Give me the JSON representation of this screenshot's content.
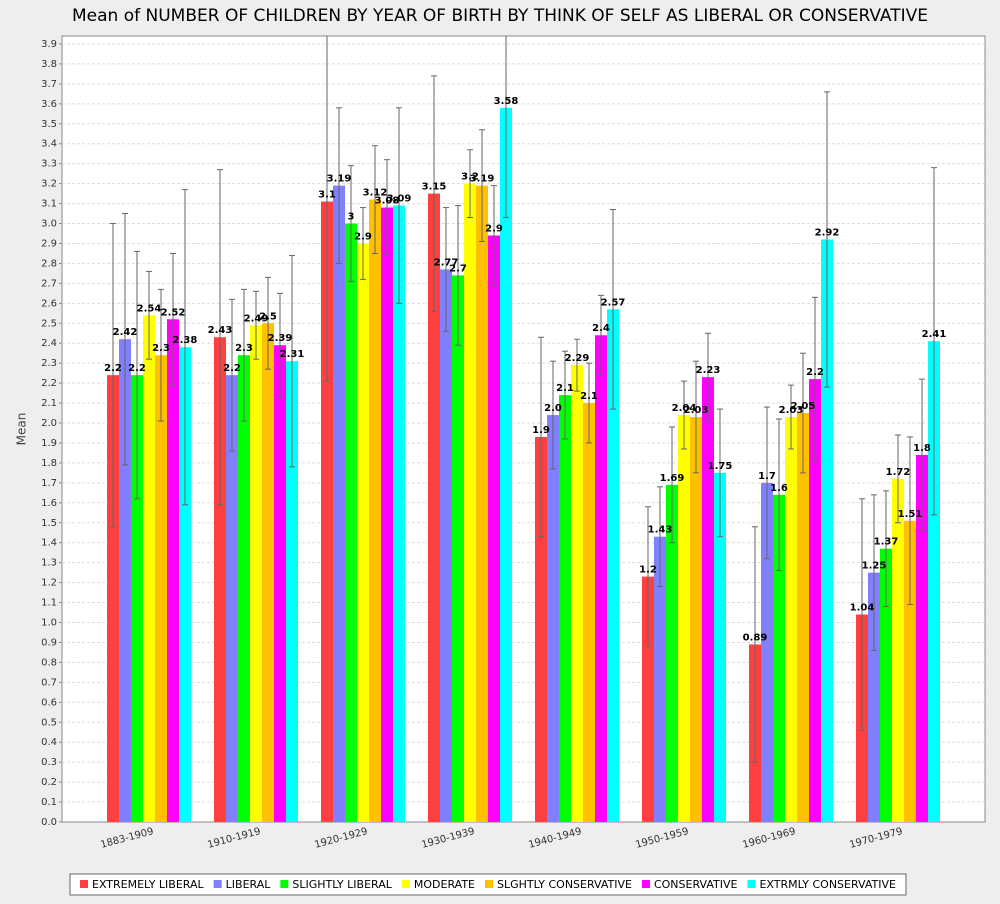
{
  "chart_data": {
    "type": "bar",
    "title": "Mean of NUMBER OF CHILDREN BY YEAR OF BIRTH BY THINK OF SELF AS LIBERAL OR CONSERVATIVE",
    "y_label": "Mean",
    "categories": [
      "1883-1909",
      "1910-1919",
      "1920-1929",
      "1930-1939",
      "1940-1949",
      "1950-1959",
      "1960-1969",
      "1970-1979"
    ],
    "series": [
      {
        "name": "EXTREMELY LIBERAL",
        "color": "#ff4040",
        "values": [
          2.24,
          2.43,
          3.11,
          3.15,
          1.93,
          1.23,
          0.89,
          1.04
        ],
        "value_labels": [
          "2.2",
          "2.43",
          "3.1",
          "3.15",
          "1.9",
          "1.2",
          "0.89",
          "1.04"
        ],
        "errors": [
          0.76,
          0.84,
          0.9,
          0.59,
          0.5,
          0.35,
          0.59,
          0.58
        ]
      },
      {
        "name": "LIBERAL",
        "color": "#8080ff",
        "values": [
          2.42,
          2.24,
          3.19,
          2.77,
          2.04,
          1.43,
          1.7,
          1.25
        ],
        "value_labels": [
          "2.42",
          "2.2",
          "3.19",
          "2.77",
          "2.0",
          "1.43",
          "1.7",
          "1.25"
        ],
        "errors": [
          0.63,
          0.38,
          0.39,
          0.31,
          0.27,
          0.25,
          0.38,
          0.39
        ]
      },
      {
        "name": "SLIGHTLY LIBERAL",
        "color": "#00ff00",
        "values": [
          2.24,
          2.34,
          3.0,
          2.74,
          2.14,
          1.69,
          1.64,
          1.37
        ],
        "value_labels": [
          "2.2",
          "2.3",
          "3",
          "2.7",
          "2.1",
          "1.69",
          "1.6",
          "1.37"
        ],
        "errors": [
          0.62,
          0.33,
          0.29,
          0.35,
          0.22,
          0.29,
          0.38,
          0.29
        ]
      },
      {
        "name": "MODERATE",
        "color": "#ffff00",
        "values": [
          2.54,
          2.49,
          2.9,
          3.2,
          2.29,
          2.04,
          2.03,
          1.72
        ],
        "value_labels": [
          "2.54",
          "2.49",
          "2.9",
          "3.2",
          "2.29",
          "2.04",
          "2.03",
          "1.72"
        ],
        "errors": [
          0.22,
          0.17,
          0.18,
          0.17,
          0.13,
          0.17,
          0.16,
          0.22
        ]
      },
      {
        "name": "SLGHTLY CONSERVATIVE",
        "color": "#ffc000",
        "values": [
          2.34,
          2.5,
          3.12,
          3.19,
          2.1,
          2.03,
          2.05,
          1.51
        ],
        "value_labels": [
          "2.3",
          "2.5",
          "3.12",
          "3.19",
          "2.1",
          "2.03",
          "2.05",
          "1.51"
        ],
        "errors": [
          0.33,
          0.23,
          0.27,
          0.28,
          0.2,
          0.28,
          0.3,
          0.42
        ]
      },
      {
        "name": "CONSERVATIVE",
        "color": "#ff00ff",
        "values": [
          2.52,
          2.39,
          3.08,
          2.94,
          2.44,
          2.23,
          2.22,
          1.84
        ],
        "value_labels": [
          "2.52",
          "2.39",
          "3.08",
          "2.9",
          "2.4",
          "2.23",
          "2.2",
          "1.8"
        ],
        "errors": [
          0.33,
          0.26,
          0.24,
          0.25,
          0.2,
          0.22,
          0.41,
          0.38
        ]
      },
      {
        "name": "EXTRMLY CONSERVATIVE",
        "color": "#00ffff",
        "values": [
          2.38,
          2.31,
          3.09,
          3.58,
          2.57,
          1.75,
          2.92,
          2.41
        ],
        "value_labels": [
          "2.38",
          "2.31",
          "3.09",
          "3.58",
          "2.57",
          "1.75",
          "2.92",
          "2.41"
        ],
        "errors": [
          0.79,
          0.53,
          0.49,
          0.55,
          0.5,
          0.32,
          0.74,
          0.87
        ]
      }
    ],
    "ylim": [
      0,
      3.94
    ],
    "yticks": [
      {
        "value": 0,
        "label": "0.0"
      },
      {
        "value": 0.1,
        "label": "0.1"
      },
      {
        "value": 0.2,
        "label": "0.2"
      },
      {
        "value": 0.3,
        "label": "0.3"
      },
      {
        "value": 0.4,
        "label": "0.4"
      },
      {
        "value": 0.5,
        "label": "0.5"
      },
      {
        "value": 0.6,
        "label": "0.6"
      },
      {
        "value": 0.7,
        "label": "0.7"
      },
      {
        "value": 0.8,
        "label": "0.8"
      },
      {
        "value": 0.9,
        "label": "0.9"
      },
      {
        "value": 1,
        "label": "1.0"
      },
      {
        "value": 1.1,
        "label": "1.1"
      },
      {
        "value": 1.2,
        "label": "1.2"
      },
      {
        "value": 1.3,
        "label": "1.3"
      },
      {
        "value": 1.4,
        "label": "1.4"
      },
      {
        "value": 1.5,
        "label": "1.5"
      },
      {
        "value": 1.6,
        "label": "1.6"
      },
      {
        "value": 1.7,
        "label": "1.7"
      },
      {
        "value": 1.8,
        "label": "1.8"
      },
      {
        "value": 1.9,
        "label": "1.9"
      },
      {
        "value": 2,
        "label": "2.0"
      },
      {
        "value": 2.1,
        "label": "2.1"
      },
      {
        "value": 2.2,
        "label": "2.2"
      },
      {
        "value": 2.3,
        "label": "2.3"
      },
      {
        "value": 2.4,
        "label": "2.4"
      },
      {
        "value": 2.5,
        "label": "2.5"
      },
      {
        "value": 2.6,
        "label": "2.6"
      },
      {
        "value": 2.7,
        "label": "2.7"
      },
      {
        "value": 2.8,
        "label": "2.8"
      },
      {
        "value": 2.9,
        "label": "2.9"
      },
      {
        "value": 3,
        "label": "3.0"
      },
      {
        "value": 3.1,
        "label": "3.1"
      },
      {
        "value": 3.2,
        "label": "3.2"
      },
      {
        "value": 3.3,
        "label": "3.3"
      },
      {
        "value": 3.4,
        "label": "3.4"
      },
      {
        "value": 3.5,
        "label": "3.5"
      },
      {
        "value": 3.6,
        "label": "3.6"
      },
      {
        "value": 3.7,
        "label": "3.7"
      },
      {
        "value": 3.8,
        "label": "3.8"
      },
      {
        "value": 3.9,
        "label": "3.9"
      }
    ],
    "grid": true
  }
}
